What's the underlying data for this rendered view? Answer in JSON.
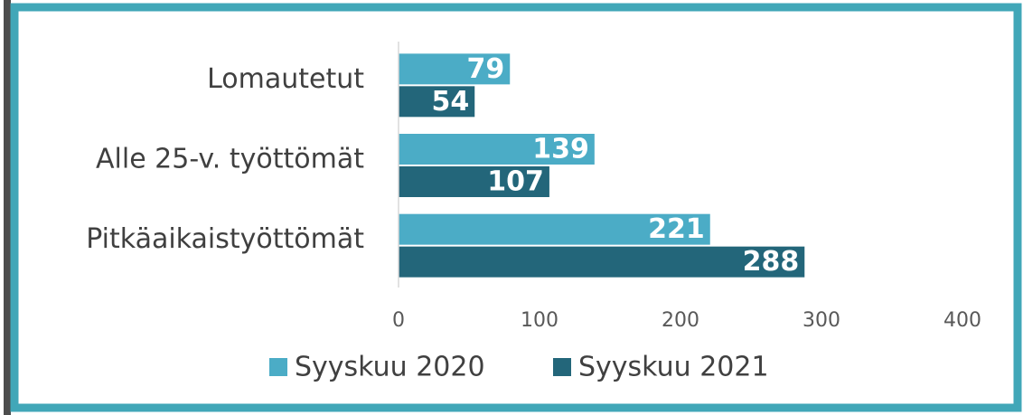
{
  "chart_data": {
    "type": "bar",
    "orientation": "horizontal",
    "categories": [
      "Lomautetut",
      "Alle 25-v. työttömät",
      "Pitkäaikaistyöttömät"
    ],
    "series": [
      {
        "name": "Syyskuu 2020",
        "color": "#4bacc6",
        "values": [
          79,
          139,
          221
        ]
      },
      {
        "name": "Syyskuu 2021",
        "color": "#23667a",
        "values": [
          54,
          107,
          288
        ]
      }
    ],
    "xlim": [
      0,
      400
    ],
    "xticks": [
      0,
      100,
      200,
      300,
      400
    ],
    "legend": "bottom"
  }
}
